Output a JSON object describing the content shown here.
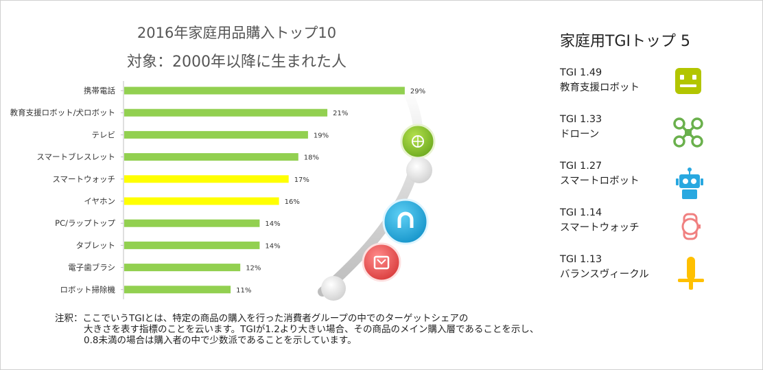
{
  "chart_data": {
    "type": "bar",
    "orientation": "horizontal",
    "title": "2016年家庭用品購入トップ10",
    "subtitle": "対象：2000年以降に生まれた人",
    "categories": [
      "携帯電話",
      "教育支援ロボット/犬ロボット",
      "テレビ",
      "スマートブレスレット",
      "スマートウォッチ",
      "イヤホン",
      "PC/ラップトップ",
      "タブレット",
      "電子歯ブラシ",
      "ロボット掃除機"
    ],
    "values": [
      29,
      21,
      19,
      18,
      17,
      16,
      14,
      14,
      12,
      11
    ],
    "value_labels": [
      "29%",
      "21%",
      "19%",
      "18%",
      "17%",
      "16%",
      "14%",
      "14%",
      "12%",
      "11%"
    ],
    "unit": "%",
    "highlighted": [
      "スマートウォッチ",
      "イヤホン"
    ],
    "colors": {
      "bar": "#92d050",
      "highlight": "#ffff00"
    },
    "xlim": [
      0,
      30
    ]
  },
  "note": {
    "label": "注釈：",
    "lines": [
      "ここでいうTGIとは、特定の商品の購入を行った消費者グループの中でのターゲットシェアの",
      "大きさを表す指標のことを云います。TGIが1.2より大きい場合、その商品のメイン購入層であることを示し、",
      "0.8未満の場合は購入者の中で少数派であることを示しています。"
    ]
  },
  "tgi": {
    "title": "家庭用TGIトップ 5",
    "items": [
      {
        "value": "TGI 1.49",
        "name": "教育支援ロボット",
        "icon": "robot-face-icon",
        "color": "#b2c500"
      },
      {
        "value": "TGI 1.33",
        "name": "ドローン",
        "icon": "drone-icon",
        "color": "#6ab04c"
      },
      {
        "value": "TGI 1.27",
        "name": "スマートロボット",
        "icon": "smart-robot-icon",
        "color": "#29a8e0"
      },
      {
        "value": "TGI 1.14",
        "name": "スマートウォッチ",
        "icon": "smartwatch-icon",
        "color": "#f08080"
      },
      {
        "value": "TGI 1.13",
        "name": "バランスヴィークル",
        "icon": "balance-vehicle-icon",
        "color": "#ffc000"
      }
    ]
  }
}
